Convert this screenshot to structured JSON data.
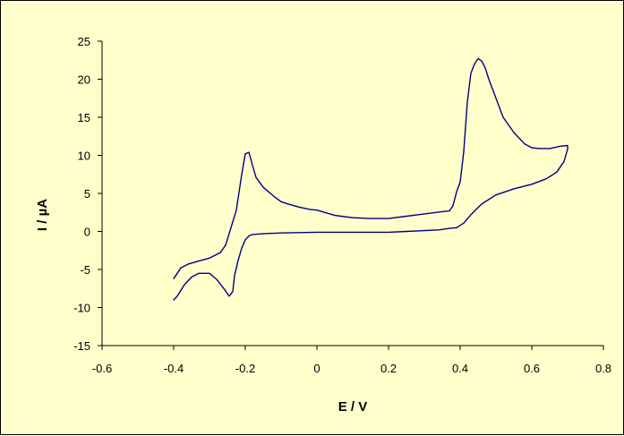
{
  "chart_data": {
    "type": "line",
    "title": "",
    "xlabel": "E / V",
    "ylabel": "I / µA",
    "xlim": [
      -0.6,
      0.8
    ],
    "ylim": [
      -15,
      25
    ],
    "xticks": [
      -0.6,
      -0.4,
      -0.2,
      0,
      0.2,
      0.4,
      0.6,
      0.8
    ],
    "yticks": [
      -15,
      -10,
      -5,
      0,
      5,
      10,
      15,
      20,
      25
    ],
    "xtick_labels": [
      "-0.6",
      "-0.4",
      "-0.2",
      "0",
      "0.2",
      "0.4",
      "0.6",
      "0.8"
    ],
    "ytick_labels": [
      "-15",
      "-10",
      "-5",
      "0",
      "5",
      "10",
      "15",
      "20",
      "25"
    ],
    "grid": false,
    "legend": "none",
    "colors": {
      "background": "#ffffcc",
      "line": "#000080",
      "axis": "#000000"
    },
    "series": [
      {
        "x": [
          -0.4,
          -0.38,
          -0.36,
          -0.33,
          -0.3,
          -0.27,
          -0.255,
          -0.24,
          -0.225,
          -0.21,
          -0.2,
          -0.19,
          -0.18,
          -0.17,
          -0.15,
          -0.12,
          -0.1,
          -0.08,
          -0.05,
          -0.02,
          0.0,
          0.05,
          0.1,
          0.15,
          0.2,
          0.25,
          0.3,
          0.35,
          0.37,
          0.38,
          0.39,
          0.4,
          0.41,
          0.42,
          0.43,
          0.44,
          0.45,
          0.46,
          0.47,
          0.48,
          0.5,
          0.52,
          0.55,
          0.58,
          0.6,
          0.62,
          0.65,
          0.68,
          0.7,
          0.7,
          0.69,
          0.67,
          0.64,
          0.6,
          0.55,
          0.5,
          0.46,
          0.43,
          0.41,
          0.39,
          0.37,
          0.34,
          0.3,
          0.25,
          0.2,
          0.1,
          0.0,
          -0.1,
          -0.15,
          -0.18,
          -0.19,
          -0.2,
          -0.21,
          -0.22,
          -0.23,
          -0.235,
          -0.245,
          -0.26,
          -0.28,
          -0.3,
          -0.33,
          -0.35,
          -0.37,
          -0.39,
          -0.4
        ],
        "y": [
          -6.2,
          -4.8,
          -4.3,
          -3.9,
          -3.5,
          -2.8,
          -1.8,
          0.5,
          2.8,
          7.5,
          10.2,
          10.4,
          8.7,
          7.1,
          5.8,
          4.6,
          3.9,
          3.6,
          3.2,
          2.9,
          2.8,
          2.1,
          1.8,
          1.7,
          1.7,
          2.0,
          2.3,
          2.6,
          2.7,
          3.4,
          5.2,
          6.5,
          10.5,
          17.0,
          20.8,
          22.0,
          22.7,
          22.4,
          21.5,
          20.0,
          17.5,
          15.0,
          13.0,
          11.5,
          11.0,
          10.9,
          10.9,
          11.2,
          11.3,
          10.8,
          9.2,
          7.8,
          6.9,
          6.2,
          5.6,
          4.8,
          3.6,
          2.2,
          1.1,
          0.5,
          0.4,
          0.2,
          0.1,
          0.0,
          -0.1,
          -0.1,
          -0.1,
          -0.2,
          -0.3,
          -0.4,
          -0.6,
          -1.1,
          -2.2,
          -3.8,
          -5.8,
          -7.9,
          -8.5,
          -7.5,
          -6.3,
          -5.5,
          -5.5,
          -6.0,
          -7.0,
          -8.5,
          -9.0
        ]
      }
    ]
  }
}
